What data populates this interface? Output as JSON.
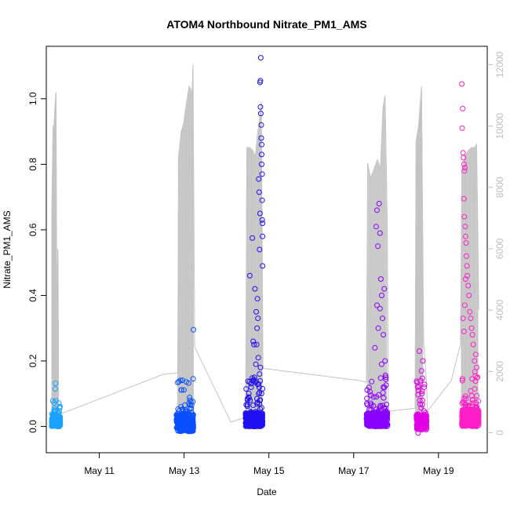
{
  "chart_data": {
    "type": "scatter",
    "title": "ATOM4 Northbound Nitrate_PM1_AMS",
    "xlabel": "Date",
    "ylabel": "Nitrate_PM1_AMS",
    "y_right_label": "",
    "x_ticks": [
      {
        "day": 11,
        "label": "May 11"
      },
      {
        "day": 13,
        "label": "May 13"
      },
      {
        "day": 15,
        "label": "May 15"
      },
      {
        "day": 17,
        "label": "May 17"
      },
      {
        "day": 19,
        "label": "May 19"
      }
    ],
    "xlim": [
      9.75,
      20.15
    ],
    "ylim": [
      -0.08,
      1.16
    ],
    "y_ticks": [
      0.0,
      0.2,
      0.4,
      0.6,
      0.8,
      1.0
    ],
    "y_tick_labels": [
      "0.0",
      "0.2",
      "0.4",
      "0.6",
      "0.8",
      "1.0"
    ],
    "y_right_lim": [
      -650,
      12600
    ],
    "y_right_ticks": [
      0,
      2000,
      4000,
      6000,
      8000,
      10000,
      12000
    ],
    "y_right_tick_labels": [
      "0",
      "2000",
      "4000",
      "6000",
      "8000",
      "10000",
      "12000"
    ],
    "grid": false,
    "series": [
      {
        "color": "#1aa3ff",
        "x_range": [
          9.87,
          10.08
        ],
        "base": [
          0.0,
          0.03
        ],
        "n": 220,
        "highlights": [
          [
            10.03,
            0.04
          ]
        ]
      },
      {
        "color": "#0a4fff",
        "x_range": [
          12.82,
          13.22
        ],
        "base": [
          -0.015,
          0.035
        ],
        "n": 320,
        "highlights": [
          [
            12.93,
            0.06
          ],
          [
            13.02,
            0.065
          ],
          [
            13.11,
            0.07
          ],
          [
            13.17,
            0.055
          ],
          [
            13.22,
            0.295
          ]
        ]
      },
      {
        "color": "#2010f0",
        "x_range": [
          14.45,
          14.85
        ],
        "base": [
          0.0,
          0.04
        ],
        "n": 420,
        "highlights": [
          [
            14.52,
            0.09
          ],
          [
            14.55,
            0.46
          ],
          [
            14.58,
            0.12
          ],
          [
            14.61,
            0.575
          ],
          [
            14.63,
            0.26
          ],
          [
            14.65,
            0.25
          ],
          [
            14.67,
            0.42
          ],
          [
            14.7,
            0.35
          ],
          [
            14.72,
            0.3
          ],
          [
            14.73,
            0.39
          ],
          [
            14.74,
            0.33
          ],
          [
            14.75,
            0.21
          ],
          [
            14.76,
            0.755
          ],
          [
            14.77,
            0.715
          ],
          [
            14.78,
            0.54
          ],
          [
            14.79,
            0.65
          ],
          [
            14.79,
            1.05
          ],
          [
            14.8,
            1.055
          ],
          [
            14.8,
            0.975
          ],
          [
            14.81,
            1.125
          ],
          [
            14.81,
            0.955
          ],
          [
            14.82,
            0.92
          ],
          [
            14.82,
            0.88
          ],
          [
            14.83,
            0.86
          ],
          [
            14.83,
            0.83
          ],
          [
            14.83,
            0.8
          ],
          [
            14.84,
            0.77
          ],
          [
            14.84,
            0.69
          ],
          [
            14.84,
            0.63
          ],
          [
            14.85,
            0.62
          ],
          [
            14.85,
            0.58
          ],
          [
            14.85,
            0.49
          ],
          [
            14.8,
            0.18
          ],
          [
            14.78,
            0.16
          ],
          [
            14.77,
            0.12
          ],
          [
            14.76,
            0.1
          ],
          [
            14.71,
            0.25
          ],
          [
            14.69,
            0.19
          ],
          [
            14.66,
            0.15
          ],
          [
            14.62,
            0.14
          ]
        ]
      },
      {
        "color": "#8800ff",
        "x_range": [
          17.3,
          17.8
        ],
        "base": [
          0.0,
          0.04
        ],
        "n": 400,
        "highlights": [
          [
            17.5,
            0.24
          ],
          [
            17.53,
            0.61
          ],
          [
            17.55,
            0.66
          ],
          [
            17.57,
            0.55
          ],
          [
            17.6,
            0.68
          ],
          [
            17.62,
            0.59
          ],
          [
            17.64,
            0.45
          ],
          [
            17.66,
            0.4
          ],
          [
            17.68,
            0.33
          ],
          [
            17.7,
            0.28
          ],
          [
            17.72,
            0.42
          ],
          [
            17.74,
            0.2
          ],
          [
            17.76,
            0.15
          ],
          [
            17.58,
            0.3
          ],
          [
            17.62,
            0.36
          ],
          [
            17.55,
            0.37
          ],
          [
            17.66,
            0.19
          ],
          [
            17.7,
            0.12
          ]
        ]
      },
      {
        "color": "#e100e6",
        "x_range": [
          18.48,
          18.72
        ],
        "base": [
          -0.01,
          0.035
        ],
        "n": 200,
        "highlights": [
          [
            18.55,
            0.23
          ],
          [
            18.6,
            0.17
          ],
          [
            18.63,
            0.2
          ],
          [
            18.66,
            0.12
          ],
          [
            18.58,
            0.14
          ],
          [
            18.52,
            -0.02
          ]
        ]
      },
      {
        "color": "#ff1fc8",
        "x_range": [
          19.55,
          19.95
        ],
        "base": [
          0.0,
          0.05
        ],
        "n": 380,
        "highlights": [
          [
            19.55,
            1.045
          ],
          [
            19.56,
            0.91
          ],
          [
            19.57,
            0.97
          ],
          [
            19.58,
            0.835
          ],
          [
            19.59,
            0.82
          ],
          [
            19.6,
            0.8
          ],
          [
            19.61,
            0.78
          ],
          [
            19.62,
            0.79
          ],
          [
            19.6,
            0.695
          ],
          [
            19.61,
            0.64
          ],
          [
            19.63,
            0.61
          ],
          [
            19.64,
            0.58
          ],
          [
            19.65,
            0.56
          ],
          [
            19.66,
            0.52
          ],
          [
            19.67,
            0.49
          ],
          [
            19.68,
            0.46
          ],
          [
            19.7,
            0.43
          ],
          [
            19.72,
            0.4
          ],
          [
            19.74,
            0.35
          ],
          [
            19.76,
            0.33
          ],
          [
            19.78,
            0.3
          ],
          [
            19.8,
            0.28
          ],
          [
            19.82,
            0.25
          ],
          [
            19.62,
            0.37
          ],
          [
            19.64,
            0.45
          ],
          [
            19.58,
            0.33
          ],
          [
            19.6,
            0.29
          ],
          [
            19.85,
            0.2
          ],
          [
            19.88,
            0.22
          ],
          [
            19.9,
            0.18
          ],
          [
            19.92,
            0.15
          ]
        ]
      }
    ],
    "altitude_line": {
      "color": "#c4c4c4",
      "axis": "right",
      "gaps": [
        [
          [
            9.88,
            7200
          ],
          [
            9.91,
            10000
          ],
          [
            9.92,
            1400
          ],
          [
            9.93,
            10000
          ],
          [
            9.95,
            10500
          ],
          [
            9.97,
            11000
          ],
          [
            9.98,
            11100
          ],
          [
            10.0,
            3700
          ],
          [
            10.01,
            3200
          ],
          [
            10.02,
            6000
          ],
          [
            10.03,
            5500
          ],
          [
            10.04,
            600
          ],
          [
            10.06,
            600
          ]
        ],
        [
          [
            10.06,
            600
          ],
          [
            12.5,
            1900
          ],
          [
            12.85,
            1950
          ]
        ],
        [
          [
            12.85,
            1950
          ],
          [
            12.87,
            9000
          ],
          [
            12.93,
            9800
          ],
          [
            12.99,
            10100
          ],
          [
            13.05,
            10700
          ],
          [
            13.12,
            11300
          ],
          [
            13.19,
            11100
          ],
          [
            13.21,
            12000
          ],
          [
            13.25,
            2800
          ]
        ],
        [
          [
            13.25,
            2800
          ],
          [
            14.1,
            350
          ],
          [
            14.45,
            500
          ]
        ],
        [
          [
            14.45,
            500
          ],
          [
            14.48,
            9300
          ],
          [
            14.55,
            9300
          ],
          [
            14.62,
            9200
          ],
          [
            14.68,
            9000
          ],
          [
            14.73,
            9700
          ],
          [
            14.78,
            10200
          ],
          [
            14.82,
            10800
          ],
          [
            14.86,
            2100
          ]
        ],
        [
          [
            14.86,
            2100
          ],
          [
            17.15,
            1700
          ],
          [
            17.3,
            1650
          ]
        ],
        [
          [
            17.3,
            1650
          ],
          [
            17.33,
            8800
          ],
          [
            17.4,
            8300
          ],
          [
            17.48,
            8600
          ],
          [
            17.56,
            8900
          ],
          [
            17.63,
            8600
          ],
          [
            17.69,
            10600
          ],
          [
            17.74,
            11000
          ],
          [
            17.79,
            7000
          ],
          [
            17.82,
            700
          ]
        ],
        [
          [
            17.82,
            700
          ],
          [
            18.45,
            800
          ]
        ],
        [
          [
            18.45,
            800
          ],
          [
            18.47,
            9500
          ],
          [
            18.53,
            10000
          ],
          [
            18.6,
            11300
          ],
          [
            18.65,
            3000
          ],
          [
            18.72,
            1600
          ],
          [
            18.74,
            700
          ]
        ],
        [
          [
            18.74,
            700
          ],
          [
            19.3,
            1700
          ],
          [
            19.52,
            2900
          ]
        ],
        [
          [
            19.52,
            2900
          ],
          [
            19.55,
            8500
          ],
          [
            19.62,
            9000
          ],
          [
            19.7,
            9200
          ],
          [
            19.78,
            9300
          ],
          [
            19.85,
            9300
          ],
          [
            19.9,
            9400
          ],
          [
            19.95,
            4000
          ]
        ]
      ],
      "spike_days": [
        [
          9.88,
          10.04
        ],
        [
          12.85,
          13.22
        ],
        [
          14.46,
          14.84
        ],
        [
          17.32,
          17.78
        ],
        [
          18.46,
          18.63
        ],
        [
          19.54,
          19.93
        ]
      ]
    }
  }
}
